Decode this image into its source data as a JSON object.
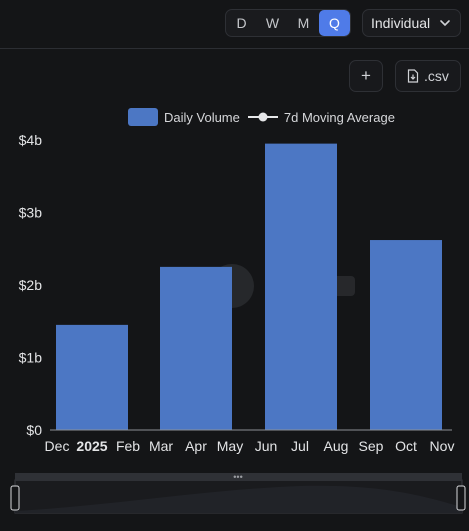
{
  "header": {
    "periods": [
      "D",
      "W",
      "M",
      "Q"
    ],
    "active_period": "Q",
    "grouping": "Individual"
  },
  "toolbar": {
    "add_label": "+",
    "csv_label": ".csv"
  },
  "colors": {
    "bar": "#4c77c4",
    "accent": "#4f7be8",
    "background": "#141517",
    "axis_text": "#e3e4e6"
  },
  "chart_data": {
    "type": "bar",
    "legend": [
      {
        "name": "Daily Volume",
        "type": "bar"
      },
      {
        "name": "7d Moving Average",
        "type": "line"
      }
    ],
    "x_tick_labels": [
      "Dec",
      "2025",
      "Feb",
      "Mar",
      "Apr",
      "May",
      "Jun",
      "Jul",
      "Aug",
      "Sep",
      "Oct",
      "Nov"
    ],
    "y_tick_labels": [
      "$0",
      "$1b",
      "$2b",
      "$3b",
      "$4b"
    ],
    "ylim": [
      0,
      4
    ],
    "y_unit": "billion USD",
    "series": [
      {
        "name": "Daily Volume",
        "values": [
          1.45,
          2.25,
          3.95,
          2.62
        ]
      }
    ],
    "grid": false,
    "legend_position": "top"
  }
}
